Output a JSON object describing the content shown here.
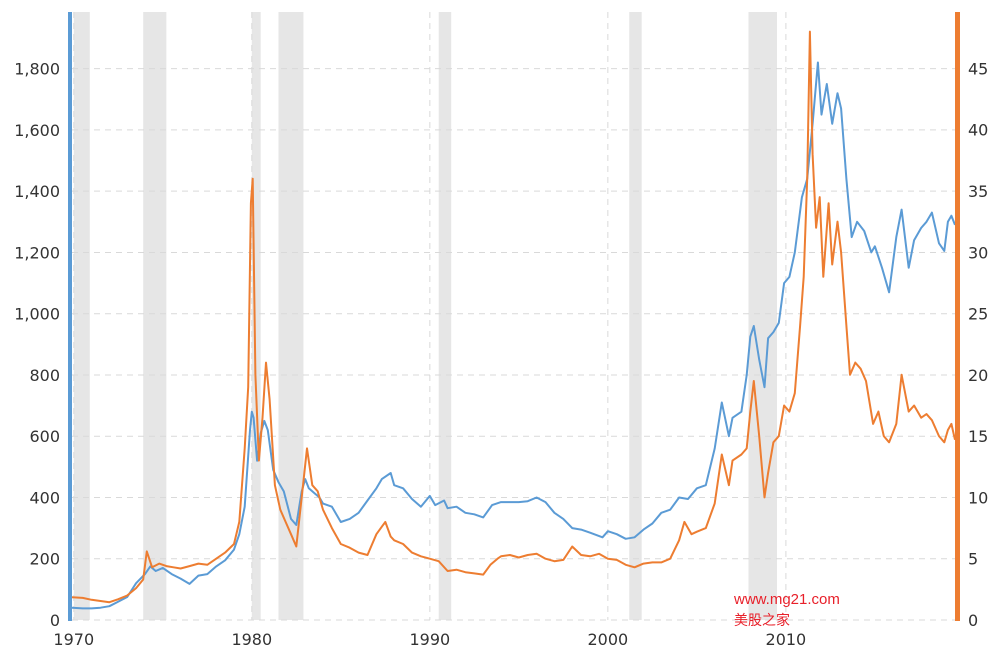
{
  "chart_data": {
    "type": "line",
    "title": "",
    "xlabel": "",
    "ylabel_left": "",
    "ylabel_right": "",
    "x_ticks": [
      "1970",
      "1980",
      "1990",
      "2000",
      "2010"
    ],
    "xlim": [
      1969.9,
      2019.5
    ],
    "left_axis": {
      "ticks": [
        "0",
        "200",
        "400",
        "600",
        "800",
        "1,000",
        "1,200",
        "1,400",
        "1,600",
        "1,800"
      ],
      "ylim": [
        0,
        1985
      ],
      "color": "#5b9bd5"
    },
    "right_axis": {
      "ticks": [
        "0",
        "5",
        "10",
        "15",
        "20",
        "25",
        "30",
        "35",
        "40",
        "45"
      ],
      "ylim": [
        0,
        49.6
      ],
      "color": "#ed7d31"
    },
    "grid": true,
    "recessions": [
      [
        1970.0,
        1970.9
      ],
      [
        1973.9,
        1975.2
      ],
      [
        1980.0,
        1980.5
      ],
      [
        1981.5,
        1982.9
      ],
      [
        1990.5,
        1991.2
      ],
      [
        2001.2,
        2001.9
      ],
      [
        2007.9,
        2009.5
      ]
    ],
    "series": [
      {
        "name": "",
        "axis": "left",
        "color": "#5b9bd5",
        "points": [
          [
            1969.9,
            40
          ],
          [
            1970.5,
            38
          ],
          [
            1971,
            38
          ],
          [
            1971.5,
            40
          ],
          [
            1972,
            45
          ],
          [
            1972.5,
            60
          ],
          [
            1973,
            75
          ],
          [
            1973.5,
            120
          ],
          [
            1974,
            150
          ],
          [
            1974.3,
            175
          ],
          [
            1974.6,
            160
          ],
          [
            1975,
            170
          ],
          [
            1975.5,
            150
          ],
          [
            1976,
            135
          ],
          [
            1976.5,
            118
          ],
          [
            1977,
            145
          ],
          [
            1977.5,
            150
          ],
          [
            1978,
            175
          ],
          [
            1978.5,
            195
          ],
          [
            1979,
            230
          ],
          [
            1979.3,
            280
          ],
          [
            1979.6,
            370
          ],
          [
            1979.9,
            620
          ],
          [
            1980.0,
            680
          ],
          [
            1980.1,
            660
          ],
          [
            1980.3,
            520
          ],
          [
            1980.5,
            610
          ],
          [
            1980.7,
            650
          ],
          [
            1980.9,
            620
          ],
          [
            1981.2,
            490
          ],
          [
            1981.5,
            450
          ],
          [
            1981.8,
            420
          ],
          [
            1982.2,
            330
          ],
          [
            1982.5,
            310
          ],
          [
            1982.8,
            420
          ],
          [
            1983.0,
            460
          ],
          [
            1983.2,
            430
          ],
          [
            1983.5,
            415
          ],
          [
            1983.8,
            400
          ],
          [
            1984,
            380
          ],
          [
            1984.5,
            370
          ],
          [
            1985,
            320
          ],
          [
            1985.5,
            330
          ],
          [
            1986,
            350
          ],
          [
            1986.5,
            390
          ],
          [
            1987,
            430
          ],
          [
            1987.3,
            460
          ],
          [
            1987.8,
            480
          ],
          [
            1988,
            440
          ],
          [
            1988.5,
            430
          ],
          [
            1989,
            395
          ],
          [
            1989.5,
            370
          ],
          [
            1990,
            405
          ],
          [
            1990.3,
            375
          ],
          [
            1990.8,
            390
          ],
          [
            1991,
            365
          ],
          [
            1991.5,
            370
          ],
          [
            1992,
            350
          ],
          [
            1992.5,
            345
          ],
          [
            1993,
            335
          ],
          [
            1993.5,
            375
          ],
          [
            1994,
            385
          ],
          [
            1994.5,
            385
          ],
          [
            1995,
            385
          ],
          [
            1995.5,
            388
          ],
          [
            1996,
            400
          ],
          [
            1996.5,
            385
          ],
          [
            1997,
            350
          ],
          [
            1997.5,
            330
          ],
          [
            1998,
            300
          ],
          [
            1998.5,
            295
          ],
          [
            1999,
            285
          ],
          [
            1999.7,
            270
          ],
          [
            2000,
            290
          ],
          [
            2000.5,
            280
          ],
          [
            2001,
            265
          ],
          [
            2001.5,
            270
          ],
          [
            2002,
            295
          ],
          [
            2002.5,
            315
          ],
          [
            2003,
            350
          ],
          [
            2003.5,
            360
          ],
          [
            2004,
            400
          ],
          [
            2004.5,
            395
          ],
          [
            2005,
            430
          ],
          [
            2005.5,
            440
          ],
          [
            2006,
            560
          ],
          [
            2006.4,
            710
          ],
          [
            2006.8,
            600
          ],
          [
            2007,
            660
          ],
          [
            2007.5,
            680
          ],
          [
            2007.8,
            800
          ],
          [
            2008,
            925
          ],
          [
            2008.2,
            960
          ],
          [
            2008.5,
            850
          ],
          [
            2008.8,
            760
          ],
          [
            2009,
            920
          ],
          [
            2009.3,
            940
          ],
          [
            2009.6,
            970
          ],
          [
            2009.9,
            1100
          ],
          [
            2010.2,
            1120
          ],
          [
            2010.5,
            1200
          ],
          [
            2010.9,
            1380
          ],
          [
            2011.2,
            1440
          ],
          [
            2011.5,
            1620
          ],
          [
            2011.8,
            1820
          ],
          [
            2012,
            1650
          ],
          [
            2012.3,
            1750
          ],
          [
            2012.6,
            1620
          ],
          [
            2012.9,
            1720
          ],
          [
            2013.1,
            1670
          ],
          [
            2013.4,
            1440
          ],
          [
            2013.7,
            1250
          ],
          [
            2014,
            1300
          ],
          [
            2014.4,
            1270
          ],
          [
            2014.8,
            1200
          ],
          [
            2015,
            1220
          ],
          [
            2015.4,
            1150
          ],
          [
            2015.8,
            1070
          ],
          [
            2016.2,
            1250
          ],
          [
            2016.5,
            1340
          ],
          [
            2016.9,
            1150
          ],
          [
            2017.2,
            1240
          ],
          [
            2017.6,
            1280
          ],
          [
            2017.9,
            1300
          ],
          [
            2018.2,
            1330
          ],
          [
            2018.6,
            1230
          ],
          [
            2018.9,
            1205
          ],
          [
            2019.1,
            1300
          ],
          [
            2019.3,
            1320
          ],
          [
            2019.5,
            1290
          ]
        ]
      },
      {
        "name": "",
        "axis": "right",
        "color": "#ed7d31",
        "points": [
          [
            1969.9,
            1.85
          ],
          [
            1970.5,
            1.8
          ],
          [
            1971,
            1.65
          ],
          [
            1971.5,
            1.55
          ],
          [
            1972,
            1.45
          ],
          [
            1972.5,
            1.7
          ],
          [
            1973,
            2.0
          ],
          [
            1973.5,
            2.6
          ],
          [
            1973.9,
            3.3
          ],
          [
            1974.1,
            5.6
          ],
          [
            1974.4,
            4.3
          ],
          [
            1974.8,
            4.6
          ],
          [
            1975.2,
            4.4
          ],
          [
            1975.6,
            4.3
          ],
          [
            1976,
            4.2
          ],
          [
            1976.5,
            4.4
          ],
          [
            1977,
            4.6
          ],
          [
            1977.5,
            4.5
          ],
          [
            1978,
            5.0
          ],
          [
            1978.5,
            5.5
          ],
          [
            1979,
            6.2
          ],
          [
            1979.3,
            8.0
          ],
          [
            1979.6,
            14.0
          ],
          [
            1979.8,
            19.0
          ],
          [
            1979.95,
            34.0
          ],
          [
            1980.05,
            36.0
          ],
          [
            1980.2,
            20.0
          ],
          [
            1980.4,
            13.0
          ],
          [
            1980.6,
            16.5
          ],
          [
            1980.8,
            21.0
          ],
          [
            1981,
            18.0
          ],
          [
            1981.3,
            11.0
          ],
          [
            1981.6,
            9.0
          ],
          [
            1981.9,
            8.0
          ],
          [
            1982.2,
            7.0
          ],
          [
            1982.5,
            6.0
          ],
          [
            1982.8,
            10.0
          ],
          [
            1983.1,
            14.0
          ],
          [
            1983.4,
            11.0
          ],
          [
            1983.7,
            10.5
          ],
          [
            1984,
            9.0
          ],
          [
            1984.5,
            7.5
          ],
          [
            1985,
            6.2
          ],
          [
            1985.5,
            5.9
          ],
          [
            1986,
            5.5
          ],
          [
            1986.5,
            5.3
          ],
          [
            1987,
            7.0
          ],
          [
            1987.5,
            8.0
          ],
          [
            1987.8,
            6.8
          ],
          [
            1988,
            6.5
          ],
          [
            1988.5,
            6.2
          ],
          [
            1989,
            5.5
          ],
          [
            1989.5,
            5.2
          ],
          [
            1990,
            5.0
          ],
          [
            1990.5,
            4.8
          ],
          [
            1991,
            4.0
          ],
          [
            1991.5,
            4.1
          ],
          [
            1992,
            3.9
          ],
          [
            1992.5,
            3.8
          ],
          [
            1993,
            3.7
          ],
          [
            1993.4,
            4.5
          ],
          [
            1993.8,
            5.0
          ],
          [
            1994,
            5.2
          ],
          [
            1994.5,
            5.3
          ],
          [
            1995,
            5.1
          ],
          [
            1995.5,
            5.3
          ],
          [
            1996,
            5.4
          ],
          [
            1996.5,
            5.0
          ],
          [
            1997,
            4.8
          ],
          [
            1997.5,
            4.9
          ],
          [
            1998,
            6.0
          ],
          [
            1998.5,
            5.3
          ],
          [
            1999,
            5.2
          ],
          [
            1999.5,
            5.4
          ],
          [
            2000,
            5.0
          ],
          [
            2000.5,
            4.9
          ],
          [
            2001,
            4.5
          ],
          [
            2001.5,
            4.3
          ],
          [
            2002,
            4.6
          ],
          [
            2002.5,
            4.7
          ],
          [
            2003,
            4.7
          ],
          [
            2003.5,
            5.0
          ],
          [
            2004,
            6.5
          ],
          [
            2004.3,
            8.0
          ],
          [
            2004.7,
            7.0
          ],
          [
            2005,
            7.2
          ],
          [
            2005.5,
            7.5
          ],
          [
            2006,
            9.5
          ],
          [
            2006.4,
            13.5
          ],
          [
            2006.8,
            11.0
          ],
          [
            2007,
            13.0
          ],
          [
            2007.5,
            13.5
          ],
          [
            2007.8,
            14.0
          ],
          [
            2008,
            17.0
          ],
          [
            2008.2,
            19.5
          ],
          [
            2008.5,
            15.0
          ],
          [
            2008.8,
            10.0
          ],
          [
            2009,
            12.0
          ],
          [
            2009.3,
            14.5
          ],
          [
            2009.6,
            15.0
          ],
          [
            2009.9,
            17.5
          ],
          [
            2010.2,
            17.0
          ],
          [
            2010.5,
            18.5
          ],
          [
            2010.8,
            24.0
          ],
          [
            2011.0,
            28.0
          ],
          [
            2011.2,
            36.0
          ],
          [
            2011.35,
            48.0
          ],
          [
            2011.5,
            38.0
          ],
          [
            2011.7,
            32.0
          ],
          [
            2011.9,
            34.5
          ],
          [
            2012.1,
            28.0
          ],
          [
            2012.4,
            34.0
          ],
          [
            2012.6,
            29.0
          ],
          [
            2012.9,
            32.5
          ],
          [
            2013.1,
            30.0
          ],
          [
            2013.4,
            24.0
          ],
          [
            2013.6,
            20.0
          ],
          [
            2013.9,
            21.0
          ],
          [
            2014.2,
            20.5
          ],
          [
            2014.5,
            19.5
          ],
          [
            2014.9,
            16.0
          ],
          [
            2015.2,
            17.0
          ],
          [
            2015.5,
            15.0
          ],
          [
            2015.8,
            14.5
          ],
          [
            2016.2,
            16.0
          ],
          [
            2016.5,
            20.0
          ],
          [
            2016.9,
            17.0
          ],
          [
            2017.2,
            17.5
          ],
          [
            2017.6,
            16.5
          ],
          [
            2017.9,
            16.8
          ],
          [
            2018.2,
            16.3
          ],
          [
            2018.6,
            15.0
          ],
          [
            2018.9,
            14.5
          ],
          [
            2019.1,
            15.5
          ],
          [
            2019.3,
            16.0
          ],
          [
            2019.5,
            14.7
          ]
        ]
      }
    ]
  },
  "watermark": {
    "url": "www.mg21.com",
    "cn": "美股之家",
    "color": "#e8202a"
  }
}
